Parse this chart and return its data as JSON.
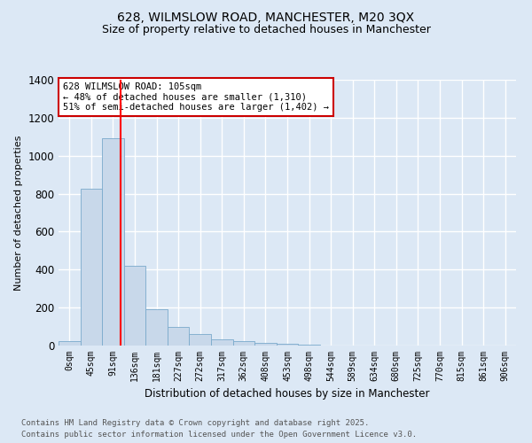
{
  "title1": "628, WILMSLOW ROAD, MANCHESTER, M20 3QX",
  "title2": "Size of property relative to detached houses in Manchester",
  "xlabel": "Distribution of detached houses by size in Manchester",
  "ylabel": "Number of detached properties",
  "annotation_title": "628 WILMSLOW ROAD: 105sqm",
  "annotation_line1": "← 48% of detached houses are smaller (1,310)",
  "annotation_line2": "51% of semi-detached houses are larger (1,402) →",
  "footnote1": "Contains HM Land Registry data © Crown copyright and database right 2025.",
  "footnote2": "Contains public sector information licensed under the Open Government Licence v3.0.",
  "bin_labels": [
    "0sqm",
    "45sqm",
    "91sqm",
    "136sqm",
    "181sqm",
    "227sqm",
    "272sqm",
    "317sqm",
    "362sqm",
    "408sqm",
    "453sqm",
    "498sqm",
    "544sqm",
    "589sqm",
    "634sqm",
    "680sqm",
    "725sqm",
    "770sqm",
    "815sqm",
    "861sqm",
    "906sqm"
  ],
  "bar_values": [
    25,
    825,
    1090,
    420,
    190,
    100,
    60,
    35,
    22,
    15,
    10,
    5,
    0,
    0,
    0,
    0,
    0,
    0,
    0,
    0,
    0
  ],
  "bar_color": "#c8d8ea",
  "bar_edge_color": "#7aaacc",
  "red_line_x": 2.333,
  "ylim": [
    0,
    1400
  ],
  "yticks": [
    0,
    200,
    400,
    600,
    800,
    1000,
    1200,
    1400
  ],
  "background_color": "#dce8f5",
  "plot_bg_color": "#dce8f5",
  "grid_color": "#ffffff",
  "title1_fontsize": 10,
  "title2_fontsize": 9,
  "annotation_box_color": "#ffffff",
  "annotation_box_edge": "#cc0000",
  "footnote_color": "#555555"
}
